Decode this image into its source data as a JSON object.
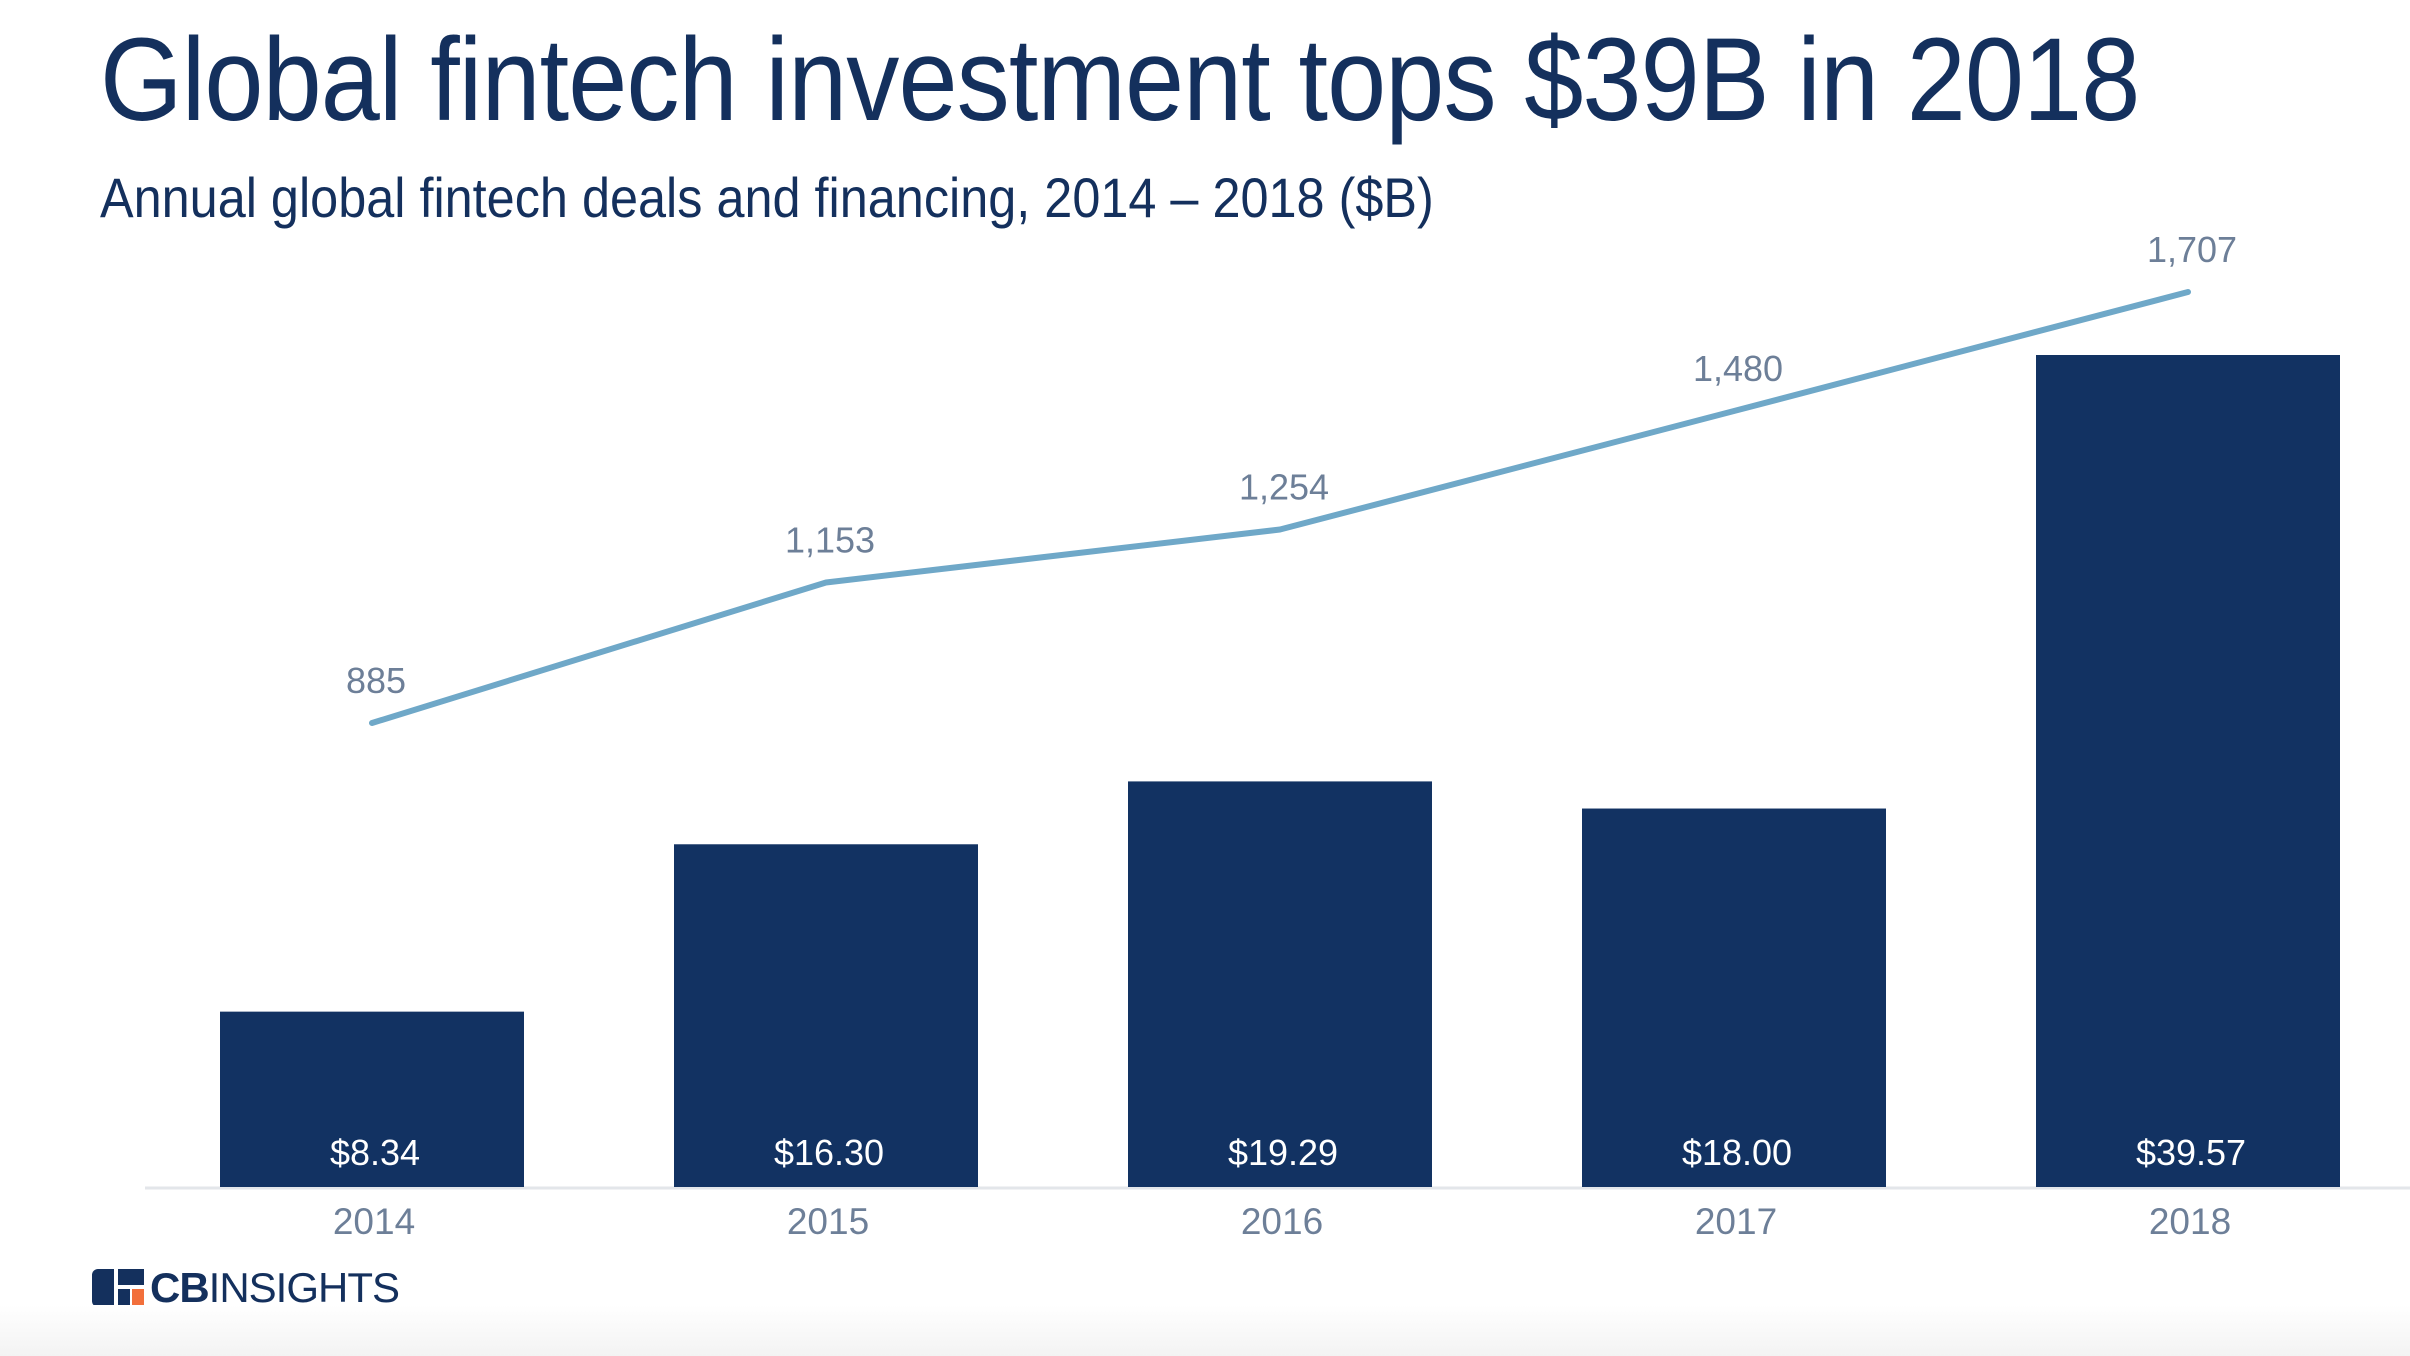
{
  "title": "Global fintech investment tops $39B in 2018",
  "subtitle": "Annual global fintech deals and financing, 2014 – 2018 ($B)",
  "logo": {
    "bold": "CB",
    "regular": "INSIGHTS"
  },
  "colors": {
    "bar": "#123262",
    "line": "#6fa8c8",
    "title": "#14305d",
    "axis_text": "#6d7f98",
    "bar_label": "#ffffff",
    "baseline": "#e3e6ea"
  },
  "chart_data": {
    "type": "bar",
    "categories": [
      "2014",
      "2015",
      "2016",
      "2017",
      "2018"
    ],
    "series": [
      {
        "type": "bar",
        "values": [
          8.34,
          16.3,
          19.29,
          18.0,
          39.57
        ],
        "labels": [
          "$8.34",
          "$16.30",
          "$19.29",
          "$18.00",
          "$39.57"
        ]
      },
      {
        "type": "line",
        "values": [
          885,
          1153,
          1254,
          1480,
          1707
        ],
        "labels": [
          "885",
          "1,153",
          "1,254",
          "1,480",
          "1,707"
        ]
      }
    ],
    "title": "Global fintech investment tops $39B in 2018",
    "subtitle": "Annual global fintech deals and financing, 2014 – 2018 ($B)",
    "xlabel": "",
    "ylabel": "",
    "ylim_bar": [
      0,
      39.57
    ],
    "ylim_line": [
      0,
      2000
    ],
    "grid": false,
    "legend": "none"
  }
}
